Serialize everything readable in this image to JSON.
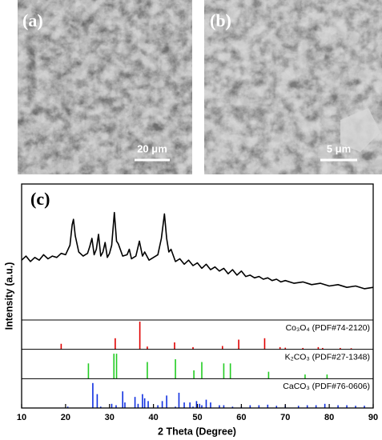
{
  "images": [
    {
      "label": "(a)",
      "scale": "20 μm"
    },
    {
      "label": "(b)",
      "scale": "5 μm"
    }
  ],
  "chart_data": {
    "type": "line",
    "title": "(c)",
    "x_label": "2 Theta (Degree)",
    "y_label": "Intensity (a.u.)",
    "xlim": [
      10,
      90
    ],
    "xticks": [
      10,
      20,
      30,
      40,
      50,
      60,
      70,
      80,
      90
    ],
    "ylim": [
      0,
      100
    ],
    "series": [
      {
        "color": "#000000",
        "x": [
          10,
          11,
          12,
          13,
          14,
          15,
          16,
          17,
          18,
          19,
          20,
          21,
          21.5,
          21.8,
          22.2,
          23,
          24,
          25,
          25.5,
          26,
          26.5,
          27,
          27.5,
          28,
          28.5,
          29,
          29.5,
          30,
          30.5,
          31.1,
          31.6,
          32,
          33,
          34,
          34.5,
          35,
          36,
          36.8,
          37.5,
          38,
          39,
          40,
          41,
          41.8,
          42.5,
          43,
          43.5,
          44,
          45,
          46,
          47,
          48,
          49,
          50,
          51,
          52,
          53,
          54,
          55,
          56,
          57,
          58,
          59,
          60,
          61,
          62,
          63,
          64,
          65,
          66,
          67,
          68,
          69,
          70,
          72,
          74,
          76,
          78,
          80,
          82,
          84,
          86,
          88,
          90
        ],
        "values": [
          44,
          47,
          43,
          46,
          44,
          48,
          45,
          47,
          46,
          49,
          48,
          55,
          70,
          74,
          62,
          50,
          47,
          49,
          54,
          60,
          48,
          52,
          63,
          47,
          50,
          57,
          46,
          49,
          55,
          79,
          58,
          56,
          47,
          48,
          52,
          45,
          47,
          58,
          47,
          50,
          44,
          46,
          48,
          60,
          78,
          60,
          50,
          52,
          43,
          45,
          41,
          44,
          40,
          42,
          38,
          41,
          37,
          39,
          36,
          38,
          34,
          37,
          33,
          36,
          32,
          33,
          31,
          32,
          30,
          31,
          29,
          30,
          28,
          29,
          27,
          28,
          26,
          27,
          25,
          26,
          24,
          25,
          23,
          24
        ]
      }
    ],
    "references": [
      {
        "name": "Co₃O₄ (PDF#74-2120)",
        "color": "#e00000",
        "ylim": [
          0,
          100
        ],
        "x": [
          19,
          31.3,
          36.9,
          38.6,
          44.8,
          49,
          55.7,
          59.4,
          65.3,
          68.8,
          70,
          74,
          77.5,
          78.5,
          82.5,
          85
        ],
        "values": [
          20,
          40,
          100,
          10,
          25,
          8,
          12,
          35,
          40,
          8,
          6,
          5,
          8,
          5,
          5,
          4
        ]
      },
      {
        "name": "K₂CO₃ (PDF#27-1348)",
        "color": "#22cc22",
        "ylim": [
          0,
          100
        ],
        "x": [
          25.2,
          31,
          31.6,
          38.6,
          45,
          49.2,
          51,
          56,
          57.5,
          66.2,
          74.5,
          79.5
        ],
        "values": [
          55,
          90,
          90,
          60,
          70,
          30,
          60,
          55,
          55,
          25,
          15,
          15
        ]
      },
      {
        "name": "CaCO₃ (PDF#76-0606)",
        "color": "#1030e0",
        "ylim": [
          0,
          100
        ],
        "x": [
          20.5,
          26.2,
          27.2,
          28,
          30.5,
          31.5,
          33,
          33.5,
          35.8,
          36.5,
          37.5,
          38,
          38.8,
          41,
          42,
          43,
          45,
          45.8,
          47,
          48.3,
          49,
          49.8,
          50.5,
          51,
          52,
          53,
          55,
          56,
          58,
          60,
          62,
          64,
          66,
          68,
          70,
          73,
          75,
          77,
          79,
          82,
          84,
          86,
          88
        ],
        "values": [
          5,
          90,
          50,
          5,
          15,
          10,
          60,
          20,
          40,
          15,
          50,
          35,
          25,
          10,
          25,
          45,
          5,
          55,
          20,
          20,
          5,
          25,
          15,
          10,
          30,
          20,
          10,
          10,
          5,
          5,
          10,
          10,
          12,
          8,
          10,
          8,
          10,
          10,
          15,
          10,
          10,
          8,
          8
        ]
      }
    ]
  }
}
